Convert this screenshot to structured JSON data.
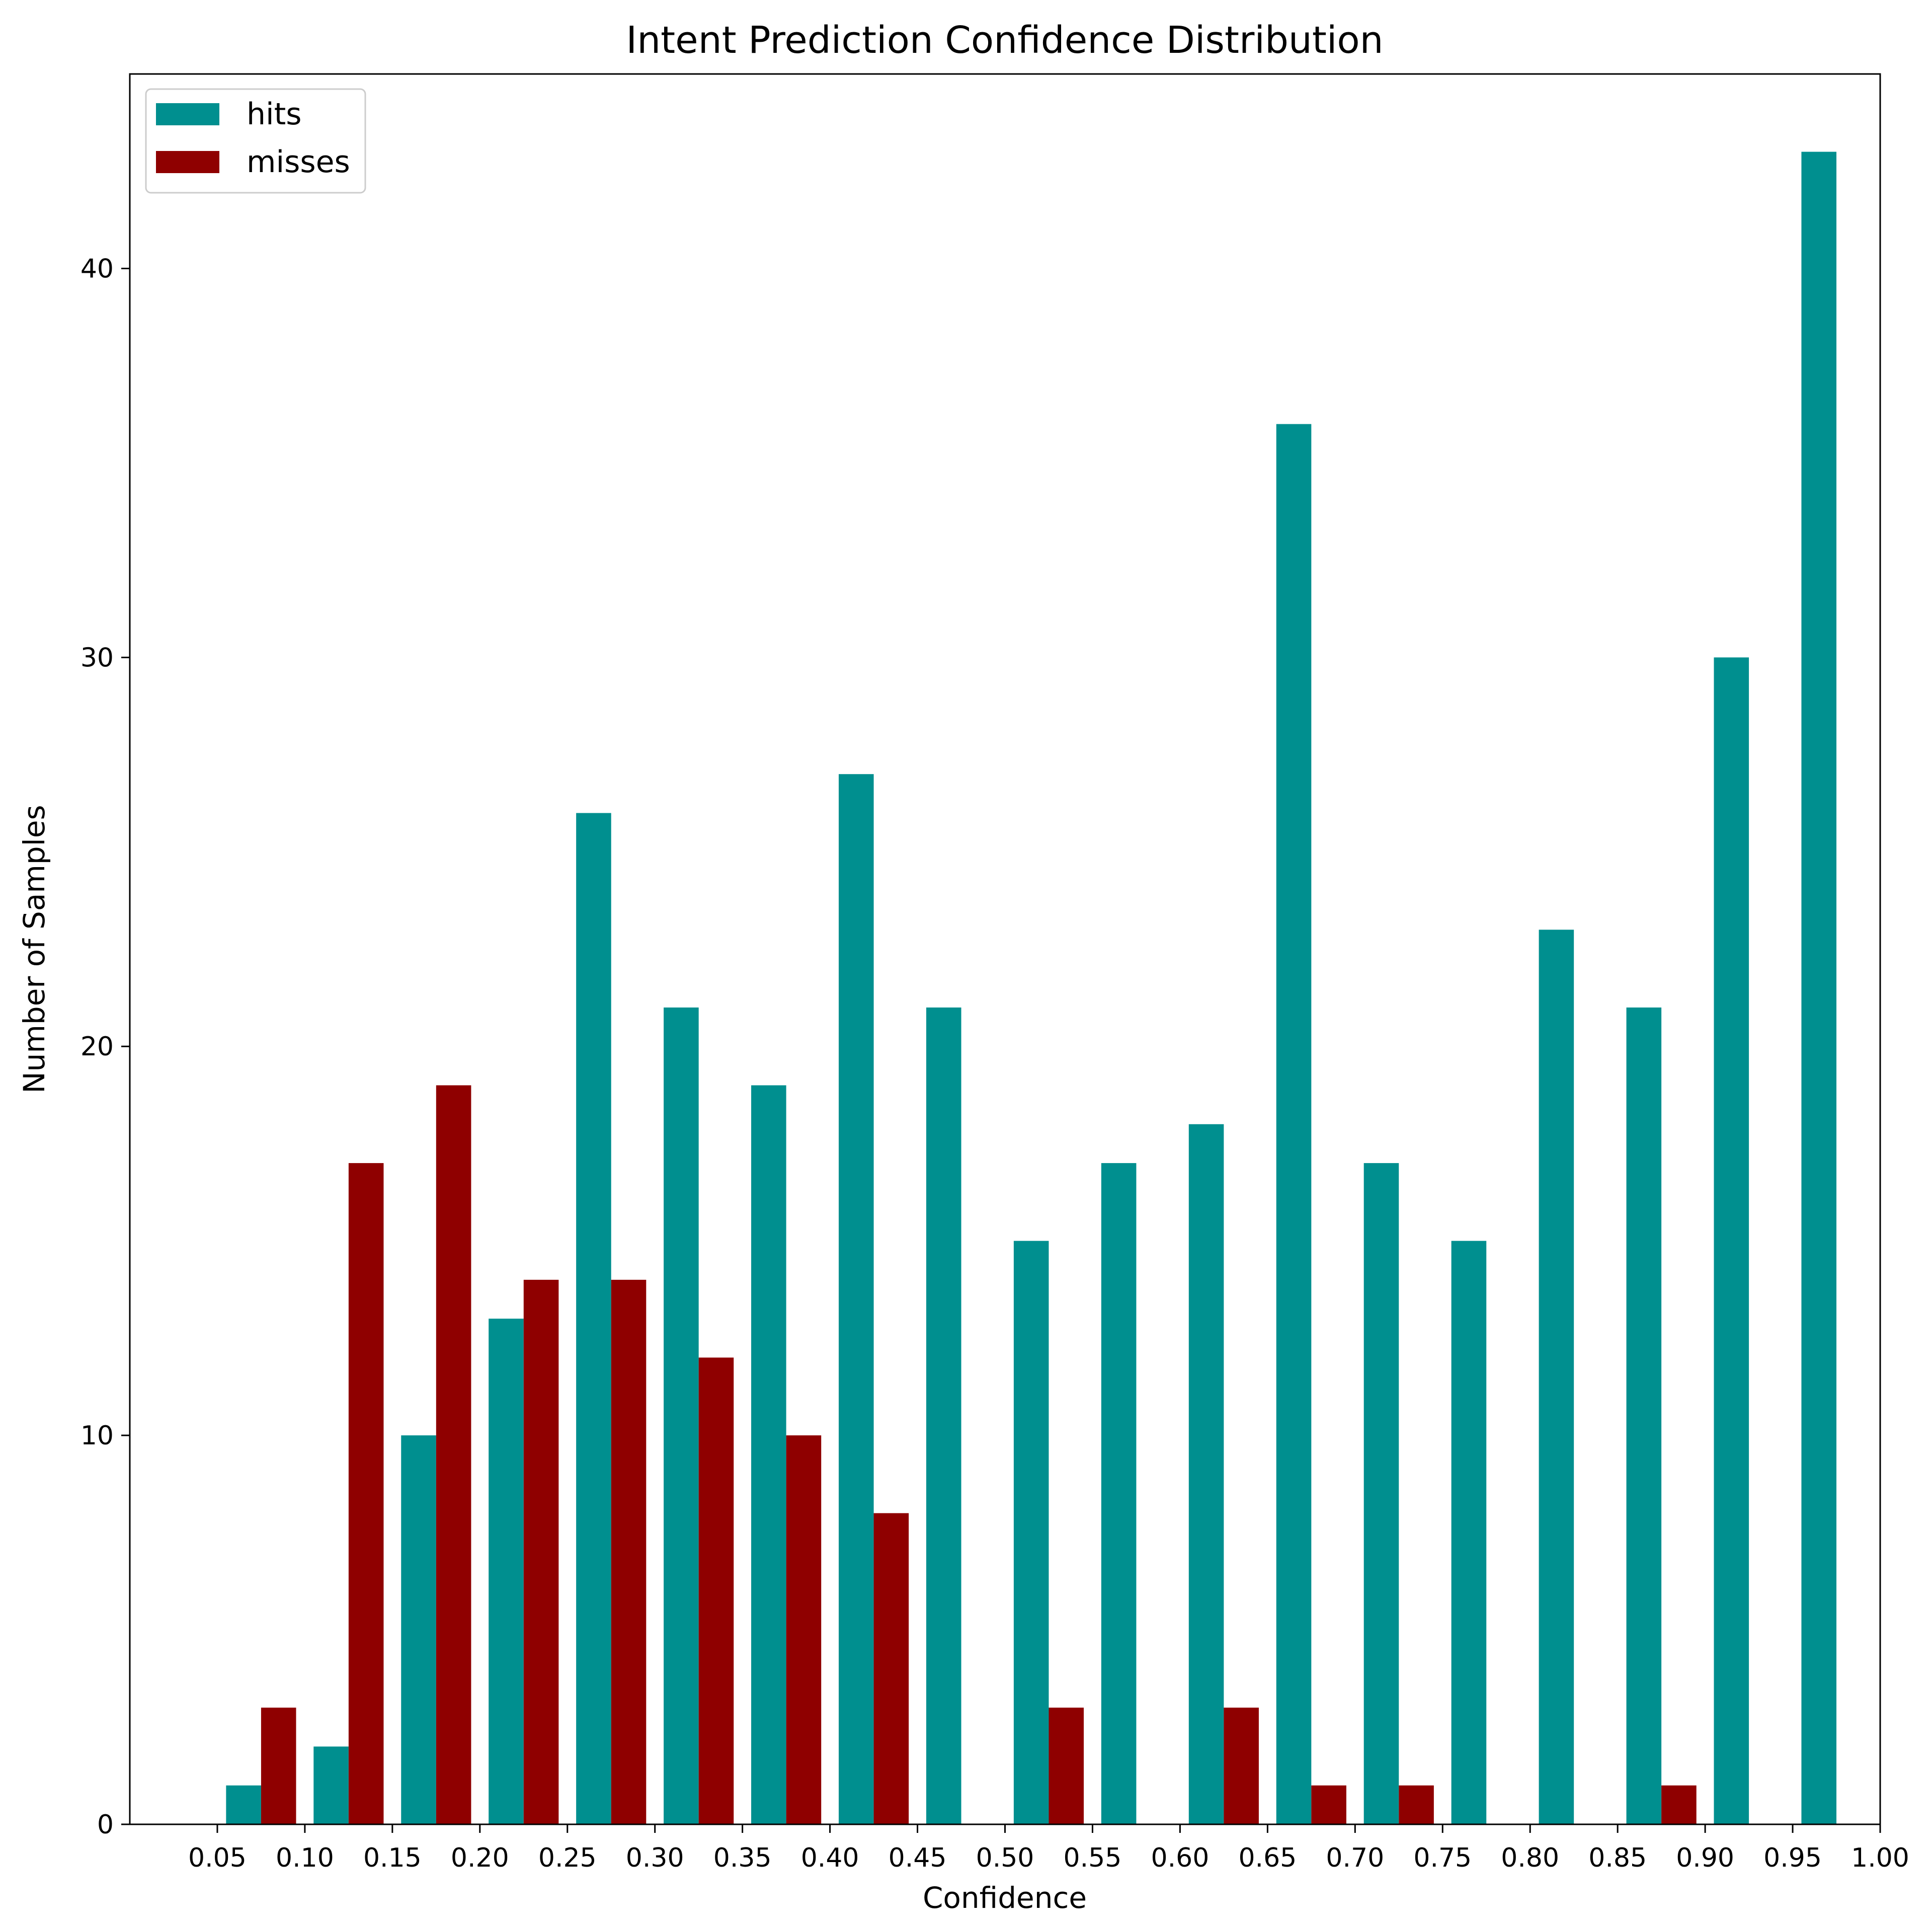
{
  "chart_data": {
    "type": "bar",
    "title": "Intent Prediction Confidence Distribution",
    "xlabel": "Confidence",
    "ylabel": "Number of Samples",
    "xlim": [
      0.0,
      1.0
    ],
    "ylim": [
      0,
      45
    ],
    "x_ticks": [
      "0.05",
      "0.10",
      "0.15",
      "0.20",
      "0.25",
      "0.30",
      "0.35",
      "0.40",
      "0.45",
      "0.50",
      "0.55",
      "0.60",
      "0.65",
      "0.70",
      "0.75",
      "0.80",
      "0.85",
      "0.90",
      "0.95",
      "1.00"
    ],
    "y_ticks": [
      "0",
      "10",
      "20",
      "30",
      "40"
    ],
    "y_tick_values": [
      0,
      10,
      20,
      30,
      40
    ],
    "bin_edges": [
      0.05,
      0.1,
      0.15,
      0.2,
      0.25,
      0.3,
      0.35,
      0.4,
      0.45,
      0.5,
      0.55,
      0.6,
      0.65,
      0.7,
      0.75,
      0.8,
      0.85,
      0.9,
      0.95,
      1.0
    ],
    "grid": false,
    "legend_position": "top-left",
    "series": [
      {
        "name": "hits",
        "color": "#008f8f",
        "values": [
          1,
          2,
          10,
          13,
          26,
          21,
          19,
          27,
          21,
          15,
          17,
          18,
          36,
          17,
          15,
          23,
          21,
          30,
          43
        ]
      },
      {
        "name": "misses",
        "color": "#8f0000",
        "values": [
          3,
          17,
          19,
          14,
          14,
          12,
          10,
          8,
          0,
          3,
          0,
          3,
          1,
          1,
          0,
          0,
          1,
          0,
          0
        ]
      }
    ]
  }
}
